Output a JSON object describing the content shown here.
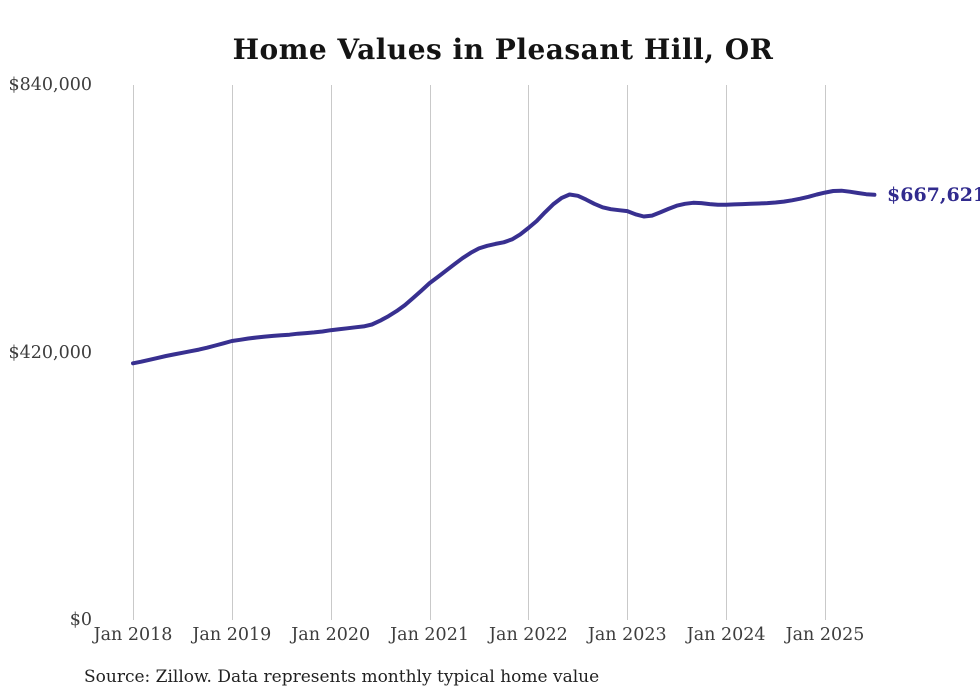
{
  "chart_data": {
    "type": "line",
    "title": "Home Values in Pleasant Hill, OR",
    "source_note": "Source: Zillow. Data represents monthly typical home value",
    "end_label": "$667,621",
    "latest_value": 667621,
    "line_color": "#383090",
    "grid_color": "#c9c9c9",
    "ylim": [
      0,
      840000
    ],
    "grid": "vertical-only",
    "legend_position": "none",
    "y_ticks": [
      {
        "label": "$840,000",
        "value": 840000
      },
      {
        "label": "$420,000",
        "value": 420000
      },
      {
        "label": "$0",
        "value": 0
      }
    ],
    "x_ticks": [
      {
        "label": "Jan 2018",
        "month_index": 0
      },
      {
        "label": "Jan 2019",
        "month_index": 12
      },
      {
        "label": "Jan 2020",
        "month_index": 24
      },
      {
        "label": "Jan 2021",
        "month_index": 36
      },
      {
        "label": "Jan 2022",
        "month_index": 48
      },
      {
        "label": "Jan 2023",
        "month_index": 60
      },
      {
        "label": "Jan 2024",
        "month_index": 72
      },
      {
        "label": "Jan 2025",
        "month_index": 84
      }
    ],
    "series": [
      {
        "name": "Monthly typical home value",
        "start_month": "2018-01",
        "end_month": "2025-07",
        "values": [
          403000,
          405500,
          408500,
          411500,
          414500,
          417000,
          419500,
          422000,
          424500,
          427500,
          431000,
          434500,
          438000,
          440000,
          442000,
          443500,
          445000,
          446000,
          447000,
          448000,
          449500,
          450500,
          451500,
          453000,
          455000,
          456500,
          458000,
          459500,
          461000,
          464000,
          470000,
          477000,
          485000,
          494500,
          505500,
          517000,
          529000,
          538500,
          548500,
          558500,
          568000,
          576500,
          583500,
          587500,
          590500,
          593000,
          597500,
          605500,
          615500,
          626500,
          640000,
          652500,
          662500,
          668000,
          666000,
          660000,
          653500,
          648000,
          645000,
          643500,
          642000,
          637000,
          633500,
          635000,
          640000,
          645500,
          650500,
          653500,
          655000,
          654500,
          653000,
          652000,
          652000,
          652500,
          653000,
          653500,
          654000,
          654500,
          655500,
          657000,
          659000,
          661500,
          664500,
          668000,
          671000,
          673500,
          674000,
          672500,
          670500,
          668500,
          667621
        ]
      }
    ]
  }
}
